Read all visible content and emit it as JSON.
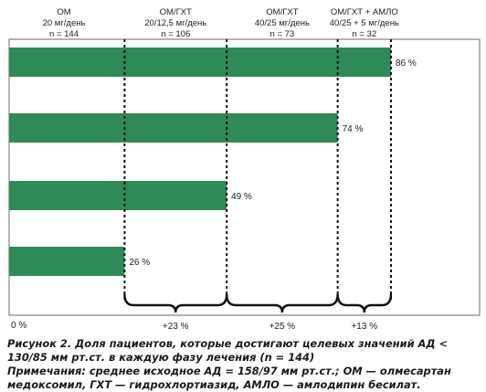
{
  "chart_data": {
    "type": "bar",
    "orientation": "horizontal",
    "categories": [
      "ОМ 20 мг/день",
      "ОМ/ГХТ 20/12,5 мг/день",
      "ОМ/ГХТ 40/25 мг/день",
      "ОМ/ГХТ + АМЛО 40/25 + 5 мг/день"
    ],
    "values": [
      26,
      49,
      74,
      86
    ],
    "value_labels": [
      "26 %",
      "49 %",
      "74 %",
      "86 %"
    ],
    "xlim": [
      0,
      100
    ],
    "zero_label": "0 %",
    "bar_color": "#2e8b57",
    "phases": [
      {
        "line1": "ОМ",
        "line2": "20 мг/день",
        "line3": "n = 144"
      },
      {
        "line1": "ОМ/ГХТ",
        "line2": "20/12,5 мг/день",
        "line3": "n = 106"
      },
      {
        "line1": "ОМ/ГХТ",
        "line2": "40/25 мг/день",
        "line3": "n = 73"
      },
      {
        "line1": "ОМ/ГХТ + АМЛО",
        "line2": "40/25 + 5 мг/день",
        "line3": "n = 32"
      }
    ],
    "increments": [
      "+23 %",
      "+25 %",
      "+13 %"
    ]
  },
  "caption": {
    "figure": "Рисунок 2. Доля пациентов, которые достигают целевых значений АД < 130/85 мм рт.ст. в каждую фазу лечения (n = 144)",
    "note": "Примечания: среднее исходное АД = 158/97 мм рт.ст.; ОМ — олмесартан медоксомил, ГХТ — гидрохлортиазид, АМЛО — амлодипин бесилат."
  }
}
